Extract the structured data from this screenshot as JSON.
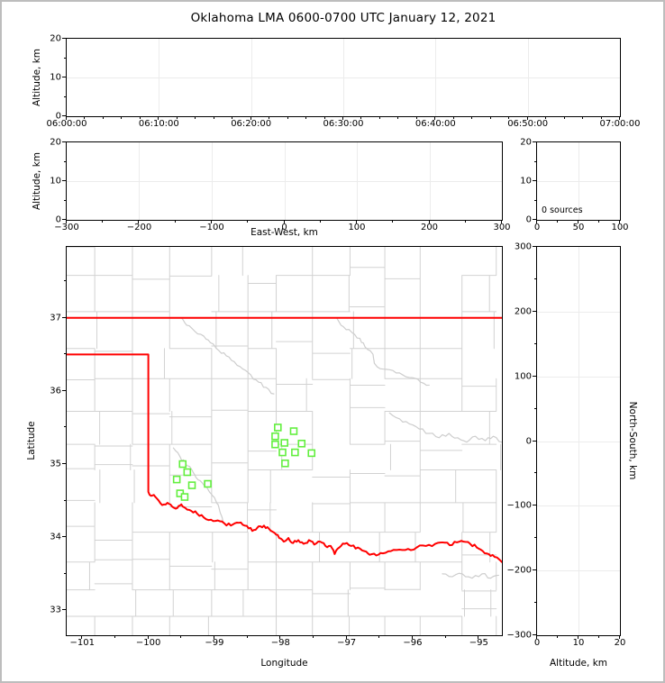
{
  "chart_data": {
    "type": "scatter",
    "title": "Oklahoma LMA 0600-0700 UTC January 12, 2021",
    "colors": {
      "state_border": "#ff0000",
      "station_marker": "#62ef3e",
      "county_line": "#d2d2d2",
      "river_line": "#cdcdcd",
      "gridline": "#ececec",
      "frame": "#000000",
      "figure_border": "#bdbdbd"
    },
    "panels": {
      "time_altitude": {
        "description": "altitude vs time panel, no sources plotted",
        "points": [],
        "ylabel": "Altitude, km",
        "ylim": [
          0,
          20
        ],
        "yticks": [
          0,
          10,
          20
        ],
        "yminor_step": 5,
        "xtick_labels": [
          "06:00:00",
          "06:10:00",
          "06:20:00",
          "06:30:00",
          "06:40:00",
          "06:50:00",
          "07:00:00"
        ],
        "xminor_index_step": 0.2,
        "grid": true
      },
      "ew_altitude": {
        "description": "altitude vs east-west distance panel, no sources plotted",
        "points": [],
        "xlabel": "East-West, km",
        "xlim": [
          -300,
          300
        ],
        "xticks": [
          -300,
          -200,
          -100,
          0,
          100,
          200,
          300
        ],
        "xminor_step": 50,
        "ylabel": "Altitude, km",
        "ylim": [
          0,
          20
        ],
        "yticks": [
          0,
          10,
          20
        ],
        "yminor_step": 5,
        "grid": true
      },
      "alt_histogram": {
        "description": "altitude histogram panel",
        "annotation": "0 sources",
        "points": [],
        "xlim": [
          0,
          100
        ],
        "xticks": [
          0,
          50,
          100
        ],
        "xminor_step": 25,
        "ylim": [
          0,
          20
        ],
        "yticks": [
          0,
          10,
          20
        ],
        "yminor_step": 5,
        "grid": true
      },
      "plan_view": {
        "description": "plan view map of Oklahoma with LMA station locations",
        "xlabel": "Longitude",
        "ylabel": "Latitude",
        "xlim": [
          -101.235,
          -94.65
        ],
        "ylim": [
          32.66,
          37.97
        ],
        "xticks": [
          -101,
          -100,
          -99,
          -98,
          -97,
          -96,
          -95
        ],
        "yticks": [
          33,
          34,
          35,
          36,
          37
        ],
        "xminor_step": 0.5,
        "yminor_step": 0.5,
        "stations": [
          [
            -98.04,
            35.5
          ],
          [
            -97.8,
            35.45
          ],
          [
            -98.08,
            35.38
          ],
          [
            -97.94,
            35.29
          ],
          [
            -98.08,
            35.27
          ],
          [
            -97.97,
            35.16
          ],
          [
            -97.78,
            35.16
          ],
          [
            -97.68,
            35.28
          ],
          [
            -97.53,
            35.15
          ],
          [
            -97.93,
            35.01
          ],
          [
            -99.48,
            35.0
          ],
          [
            -99.41,
            34.89
          ],
          [
            -99.57,
            34.79
          ],
          [
            -99.34,
            34.71
          ],
          [
            -99.1,
            34.73
          ],
          [
            -99.52,
            34.6
          ],
          [
            -99.45,
            34.55
          ]
        ],
        "state_border": {
          "kansas_line": [
            [
              -101.235,
              37.0
            ],
            [
              -94.65,
              37.0
            ]
          ],
          "panhandle": [
            [
              -101.235,
              36.5
            ],
            [
              -100.0,
              36.5
            ],
            [
              -100.0,
              34.62
            ]
          ],
          "red_river": [
            [
              -100.0,
              34.62
            ],
            [
              -99.94,
              34.57
            ],
            [
              -99.87,
              34.53
            ],
            [
              -99.79,
              34.44
            ],
            [
              -99.71,
              34.47
            ],
            [
              -99.64,
              34.42
            ],
            [
              -99.56,
              34.4
            ],
            [
              -99.5,
              34.45
            ],
            [
              -99.44,
              34.4
            ],
            [
              -99.35,
              34.36
            ],
            [
              -99.26,
              34.32
            ],
            [
              -99.16,
              34.27
            ],
            [
              -99.05,
              34.24
            ],
            [
              -98.95,
              34.23
            ],
            [
              -98.85,
              34.19
            ],
            [
              -98.75,
              34.16
            ],
            [
              -98.66,
              34.2
            ],
            [
              -98.57,
              34.17
            ],
            [
              -98.48,
              34.12
            ],
            [
              -98.4,
              34.1
            ],
            [
              -98.33,
              34.15
            ],
            [
              -98.25,
              34.16
            ],
            [
              -98.17,
              34.11
            ],
            [
              -98.09,
              34.06
            ],
            [
              -98.02,
              33.99
            ],
            [
              -97.95,
              33.94
            ],
            [
              -97.88,
              33.99
            ],
            [
              -97.81,
              33.92
            ],
            [
              -97.73,
              33.96
            ],
            [
              -97.65,
              33.91
            ],
            [
              -97.57,
              33.96
            ],
            [
              -97.49,
              33.9
            ],
            [
              -97.4,
              33.94
            ],
            [
              -97.32,
              33.88
            ],
            [
              -97.24,
              33.88
            ],
            [
              -97.18,
              33.77
            ],
            [
              -97.11,
              33.86
            ],
            [
              -97.03,
              33.91
            ],
            [
              -96.93,
              33.88
            ],
            [
              -96.83,
              33.86
            ],
            [
              -96.73,
              33.81
            ],
            [
              -96.65,
              33.76
            ],
            [
              -96.55,
              33.75
            ],
            [
              -96.45,
              33.78
            ],
            [
              -96.33,
              33.81
            ],
            [
              -96.2,
              33.83
            ],
            [
              -96.07,
              33.84
            ],
            [
              -95.94,
              33.86
            ],
            [
              -95.8,
              33.88
            ],
            [
              -95.66,
              33.91
            ],
            [
              -95.55,
              33.93
            ],
            [
              -95.44,
              33.89
            ],
            [
              -95.33,
              33.93
            ],
            [
              -95.23,
              33.94
            ],
            [
              -95.13,
              33.91
            ],
            [
              -95.03,
              33.86
            ],
            [
              -94.94,
              33.81
            ],
            [
              -94.85,
              33.77
            ],
            [
              -94.76,
              33.73
            ],
            [
              -94.65,
              33.66
            ]
          ]
        },
        "rivers": [
          [
            [
              -99.5,
              37.0
            ],
            [
              -99.42,
              36.9
            ],
            [
              -99.3,
              36.82
            ],
            [
              -99.16,
              36.75
            ],
            [
              -99.06,
              36.66
            ],
            [
              -98.93,
              36.55
            ],
            [
              -98.82,
              36.48
            ],
            [
              -98.7,
              36.4
            ],
            [
              -98.57,
              36.3
            ],
            [
              -98.45,
              36.22
            ],
            [
              -98.33,
              36.12
            ],
            [
              -98.22,
              36.05
            ],
            [
              -98.1,
              35.96
            ]
          ],
          [
            [
              -97.15,
              37.0
            ],
            [
              -97.05,
              36.88
            ],
            [
              -96.92,
              36.8
            ],
            [
              -96.8,
              36.72
            ],
            [
              -96.72,
              36.6
            ],
            [
              -96.6,
              36.5
            ],
            [
              -96.58,
              36.38
            ],
            [
              -96.45,
              36.3
            ],
            [
              -96.3,
              36.28
            ],
            [
              -96.15,
              36.22
            ],
            [
              -96.0,
              36.18
            ],
            [
              -95.88,
              36.12
            ],
            [
              -95.75,
              36.08
            ]
          ],
          [
            [
              -96.35,
              35.7
            ],
            [
              -96.2,
              35.62
            ],
            [
              -96.05,
              35.55
            ],
            [
              -95.9,
              35.48
            ],
            [
              -95.75,
              35.42
            ],
            [
              -95.6,
              35.36
            ],
            [
              -95.45,
              35.42
            ],
            [
              -95.32,
              35.36
            ],
            [
              -95.18,
              35.3
            ],
            [
              -95.05,
              35.38
            ],
            [
              -94.9,
              35.32
            ],
            [
              -94.78,
              35.38
            ],
            [
              -94.65,
              35.3
            ]
          ],
          [
            [
              -99.62,
              35.22
            ],
            [
              -99.52,
              35.1
            ],
            [
              -99.44,
              35.0
            ],
            [
              -99.34,
              34.92
            ],
            [
              -99.28,
              34.82
            ],
            [
              -99.18,
              34.74
            ],
            [
              -99.1,
              34.66
            ],
            [
              -99.02,
              34.56
            ],
            [
              -98.96,
              34.46
            ],
            [
              -98.92,
              34.36
            ],
            [
              -98.88,
              34.26
            ],
            [
              -98.86,
              34.2
            ]
          ],
          [
            [
              -95.55,
              33.5
            ],
            [
              -95.4,
              33.46
            ],
            [
              -95.25,
              33.5
            ],
            [
              -95.1,
              33.44
            ],
            [
              -94.95,
              33.5
            ],
            [
              -94.82,
              33.44
            ],
            [
              -94.7,
              33.48
            ]
          ]
        ],
        "county_grid": {
          "seed": 11,
          "lon_step": 0.54,
          "lat_step": 0.43,
          "keep": 0.88,
          "offset_prob": 0.3,
          "offset_mag": 0.11
        }
      },
      "ns_altitude": {
        "description": "north-south distance vs altitude panel, no sources plotted",
        "points": [],
        "xlabel": "Altitude, km",
        "xlim": [
          0,
          20
        ],
        "xticks": [
          0,
          10,
          20
        ],
        "xminor_step": 5,
        "ylabel_right": "North-South, km",
        "ylim": [
          -300,
          300
        ],
        "yticks": [
          300,
          200,
          100,
          0,
          -100,
          -200,
          -300
        ],
        "yminor_step": 50,
        "grid": true
      }
    }
  }
}
